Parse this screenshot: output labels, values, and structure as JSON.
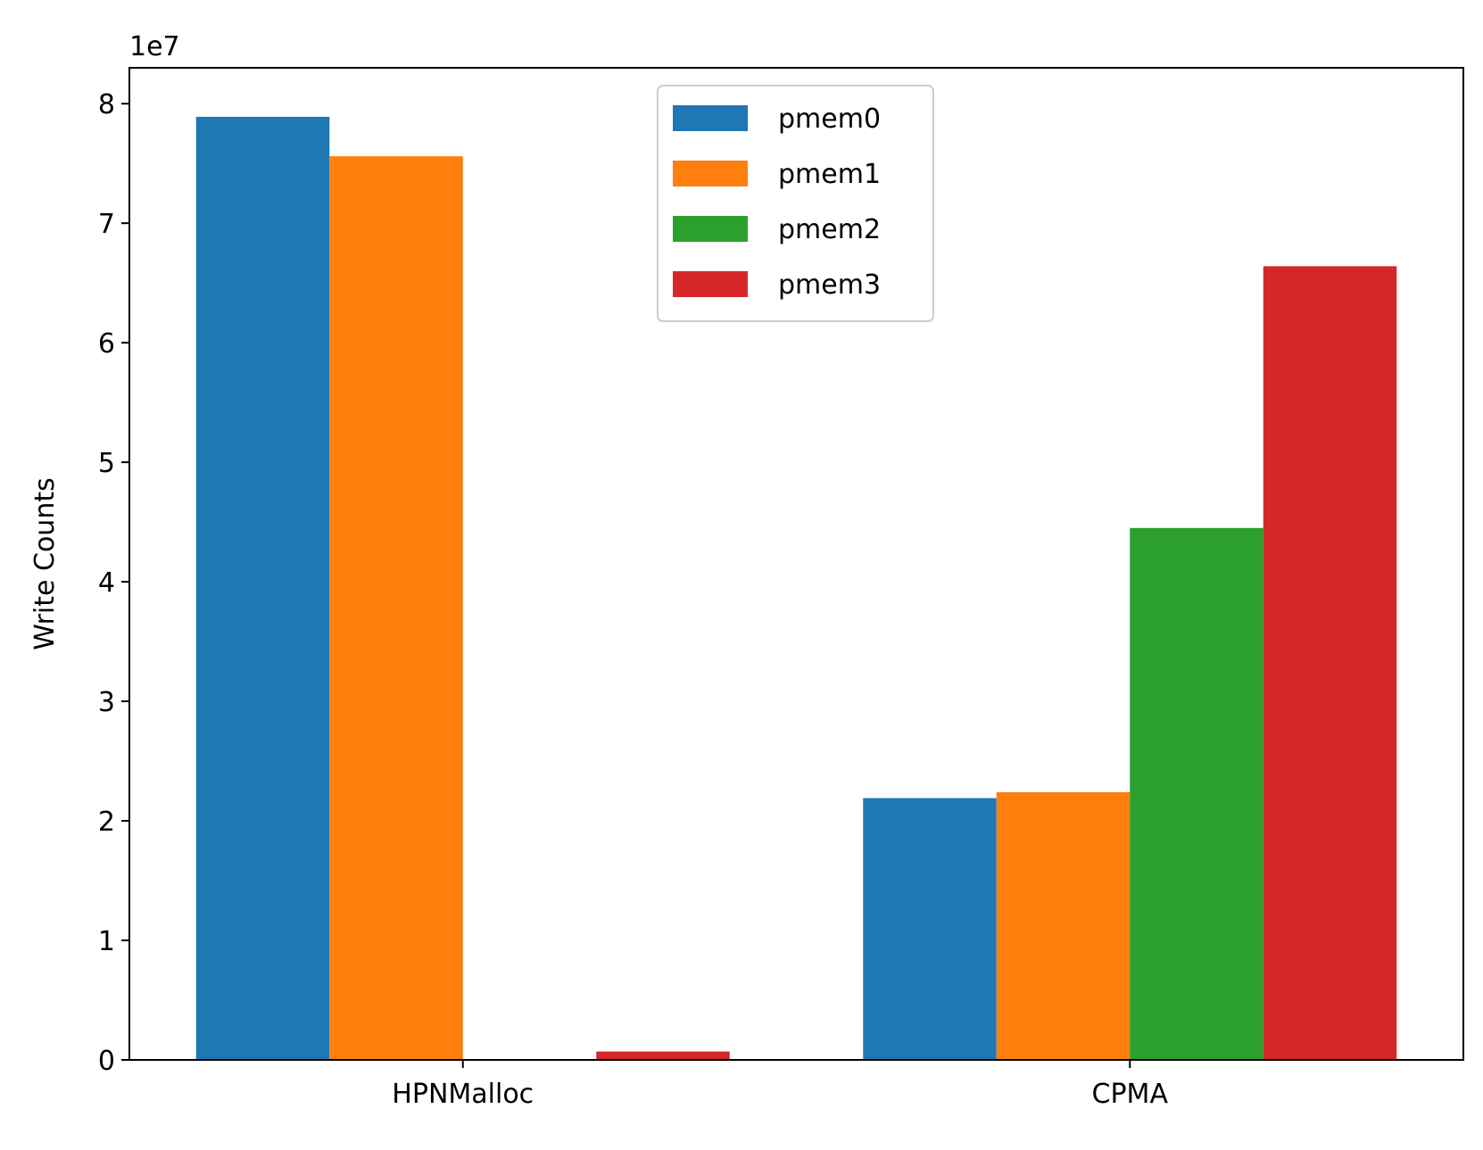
{
  "chart_data": {
    "type": "bar",
    "categories": [
      "HPNMalloc",
      "CPMA"
    ],
    "series": [
      {
        "name": "pmem0",
        "color": "#1f77b4",
        "values": [
          78900000,
          21900000
        ]
      },
      {
        "name": "pmem1",
        "color": "#ff7f0e",
        "values": [
          75600000,
          22400000
        ]
      },
      {
        "name": "pmem2",
        "color": "#2ca02c",
        "values": [
          0,
          44500000
        ]
      },
      {
        "name": "pmem3",
        "color": "#d62728",
        "values": [
          700000,
          66400000
        ]
      }
    ],
    "title": "",
    "xlabel": "",
    "ylabel": "Write Counts",
    "ylim": [
      0,
      83000000
    ],
    "yticks": [
      0,
      1,
      2,
      3,
      4,
      5,
      6,
      7,
      8
    ],
    "y_offset_label": "1e7",
    "grid": false,
    "legend": "top-center"
  }
}
